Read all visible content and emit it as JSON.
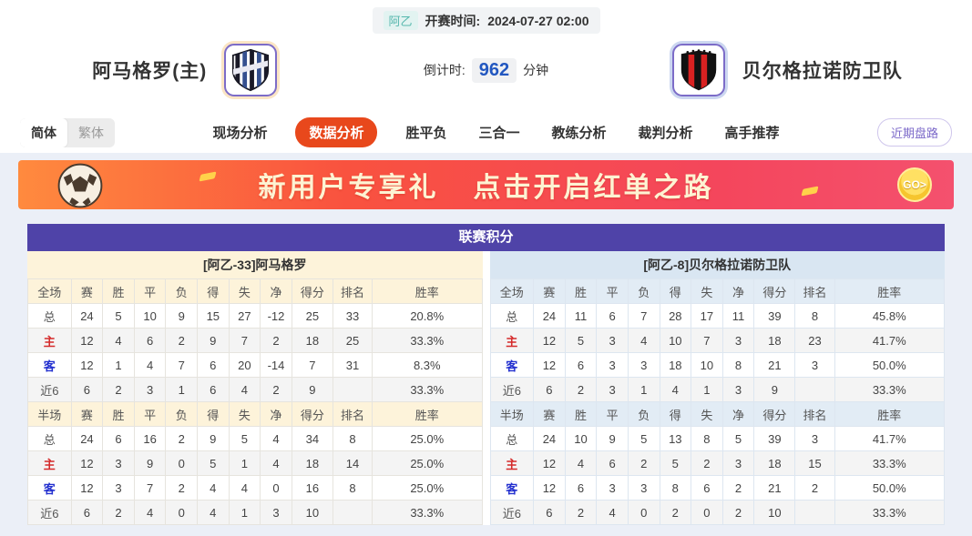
{
  "match": {
    "league": "阿乙",
    "kickoff_label": "开赛时间:",
    "kickoff_time": "2024-07-27 02:00",
    "countdown_label": "倒计时:",
    "countdown_value": "962",
    "countdown_unit": "分钟",
    "home_team": "阿马格罗(主)",
    "away_team": "贝尔格拉诺防卫队"
  },
  "nav": {
    "lang_simplified": "简体",
    "lang_traditional": "繁体",
    "tabs": [
      {
        "label": "现场分析",
        "active": false
      },
      {
        "label": "数据分析",
        "active": true
      },
      {
        "label": "胜平负",
        "active": false
      },
      {
        "label": "三合一",
        "active": false
      },
      {
        "label": "教练分析",
        "active": false
      },
      {
        "label": "裁判分析",
        "active": false
      },
      {
        "label": "高手推荐",
        "active": false
      }
    ],
    "recent_button": "近期盘路"
  },
  "banner": {
    "text1": "新用户专享礼",
    "text2": "点击开启红单之路",
    "go_label": "GO>",
    "soccer_icon": "soccer-ball"
  },
  "league_table": {
    "title": "联赛积分",
    "columns": [
      "赛",
      "胜",
      "平",
      "负",
      "得",
      "失",
      "净",
      "得分",
      "排名",
      "胜率"
    ],
    "full_section_label": "全场",
    "half_section_label": "半场",
    "teams": [
      {
        "header": "[阿乙-33]阿马格罗",
        "full": [
          {
            "label": "总",
            "values": [
              "24",
              "5",
              "10",
              "9",
              "15",
              "27",
              "-12",
              "25",
              "33",
              "20.8%"
            ]
          },
          {
            "label": "主",
            "values": [
              "12",
              "4",
              "6",
              "2",
              "9",
              "7",
              "2",
              "18",
              "25",
              "33.3%"
            ]
          },
          {
            "label": "客",
            "values": [
              "12",
              "1",
              "4",
              "7",
              "6",
              "20",
              "-14",
              "7",
              "31",
              "8.3%"
            ]
          },
          {
            "label": "近6",
            "values": [
              "6",
              "2",
              "3",
              "1",
              "6",
              "4",
              "2",
              "9",
              "",
              "33.3%"
            ]
          }
        ],
        "half": [
          {
            "label": "总",
            "values": [
              "24",
              "6",
              "16",
              "2",
              "9",
              "5",
              "4",
              "34",
              "8",
              "25.0%"
            ]
          },
          {
            "label": "主",
            "values": [
              "12",
              "3",
              "9",
              "0",
              "5",
              "1",
              "4",
              "18",
              "14",
              "25.0%"
            ]
          },
          {
            "label": "客",
            "values": [
              "12",
              "3",
              "7",
              "2",
              "4",
              "4",
              "0",
              "16",
              "8",
              "25.0%"
            ]
          },
          {
            "label": "近6",
            "values": [
              "6",
              "2",
              "4",
              "0",
              "4",
              "1",
              "3",
              "10",
              "",
              "33.3%"
            ]
          }
        ]
      },
      {
        "header": "[阿乙-8]贝尔格拉诺防卫队",
        "full": [
          {
            "label": "总",
            "values": [
              "24",
              "11",
              "6",
              "7",
              "28",
              "17",
              "11",
              "39",
              "8",
              "45.8%"
            ]
          },
          {
            "label": "主",
            "values": [
              "12",
              "5",
              "3",
              "4",
              "10",
              "7",
              "3",
              "18",
              "23",
              "41.7%"
            ]
          },
          {
            "label": "客",
            "values": [
              "12",
              "6",
              "3",
              "3",
              "18",
              "10",
              "8",
              "21",
              "3",
              "50.0%"
            ]
          },
          {
            "label": "近6",
            "values": [
              "6",
              "2",
              "3",
              "1",
              "4",
              "1",
              "3",
              "9",
              "",
              "33.3%"
            ]
          }
        ],
        "half": [
          {
            "label": "总",
            "values": [
              "24",
              "10",
              "9",
              "5",
              "13",
              "8",
              "5",
              "39",
              "3",
              "41.7%"
            ]
          },
          {
            "label": "主",
            "values": [
              "12",
              "4",
              "6",
              "2",
              "5",
              "2",
              "3",
              "18",
              "15",
              "33.3%"
            ]
          },
          {
            "label": "客",
            "values": [
              "12",
              "6",
              "3",
              "3",
              "8",
              "6",
              "2",
              "21",
              "2",
              "50.0%"
            ]
          },
          {
            "label": "近6",
            "values": [
              "6",
              "2",
              "4",
              "0",
              "2",
              "0",
              "2",
              "10",
              "",
              "33.3%"
            ]
          }
        ]
      }
    ]
  },
  "colors": {
    "accent_purple": "#4f43a8",
    "active_tab_orange": "#e8481c",
    "home_row_red": "#d52b2b",
    "away_row_blue": "#2330cf",
    "league_badge_teal": "#55b7ad",
    "countdown_blue": "#2257c0",
    "left_header_cream": "#fdf3da",
    "right_header_blue": "#d9e6f2"
  }
}
